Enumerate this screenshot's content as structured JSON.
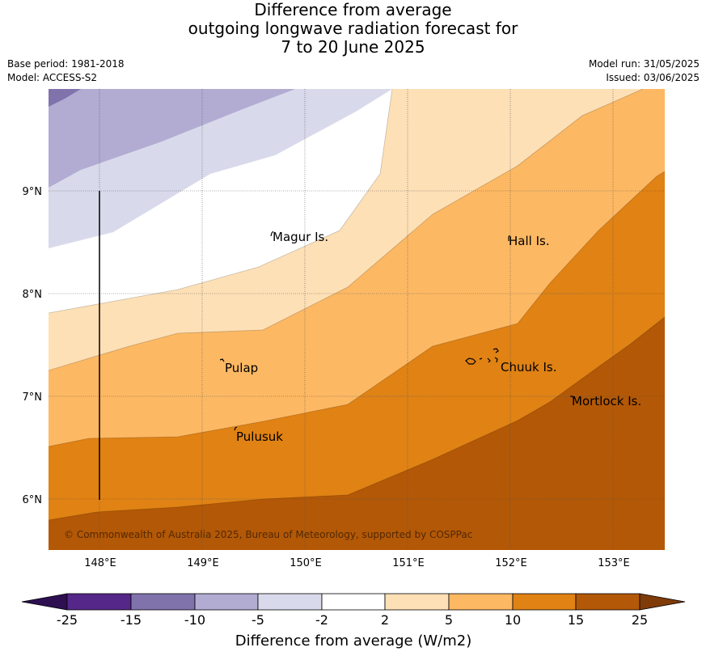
{
  "title": {
    "line1": "Difference from average",
    "line2": "outgoing longwave radiation forecast for",
    "line3": "7 to 20 June 2025"
  },
  "meta": {
    "base_period": "Base period: 1981-2018",
    "model": "Model: ACCESS-S2",
    "model_run": "Model run: 31/05/2025",
    "issued": "Issued: 03/06/2025"
  },
  "map": {
    "lon_range": [
      147.5,
      153.5
    ],
    "lat_range": [
      5.5,
      10.0
    ],
    "lon_ticks": [
      "148°E",
      "149°E",
      "150°E",
      "151°E",
      "152°E",
      "153°E"
    ],
    "lat_ticks": [
      "6°N",
      "7°N",
      "8°N",
      "9°N"
    ],
    "places": [
      "Magur Is.",
      "Hall Is.",
      "Pulap",
      "Chuuk Is.",
      "Mortlock Is.",
      "Pulusuk"
    ],
    "copyright": "© Commonwealth of Australia 2025, Bureau of Meteorology, supported by COSPPac"
  },
  "colorbar": {
    "label": "Difference from average (W/m2)",
    "ticks": [
      "-25",
      "-15",
      "-10",
      "-5",
      "-2",
      "2",
      "5",
      "10",
      "15",
      "25"
    ],
    "colors": {
      "below_-25": "#2e0f52",
      "-25_-15": "#542788",
      "-15_-10": "#8073ac",
      "-10_-5": "#b2abd2",
      "-5_-2": "#d8daeb",
      "-2_2": "#ffffff",
      "2_5": "#fee0b6",
      "5_10": "#fdb863",
      "10_15": "#e08214",
      "15_25": "#b35806",
      "above_25": "#7f3b08"
    }
  }
}
